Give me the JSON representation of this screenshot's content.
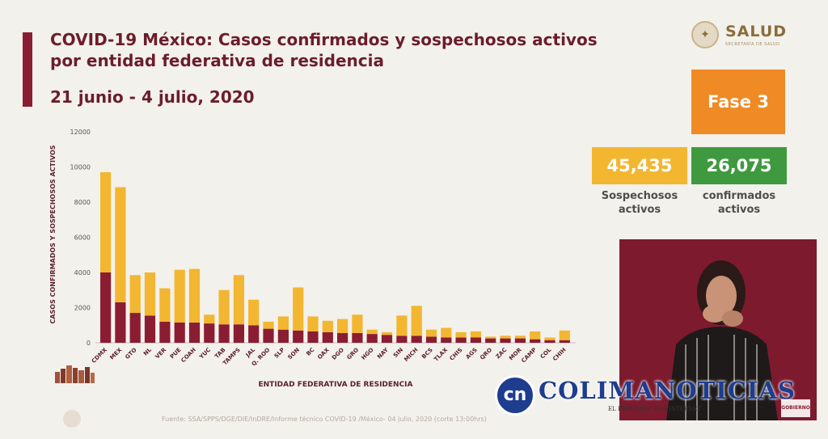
{
  "header": {
    "title": "COVID-19 México: Casos confirmados y sospechosos activos por entidad federativa de residencia",
    "date_range": "21 junio - 4  julio, 2020"
  },
  "logo": {
    "text": "SALUD",
    "subtext": "SECRETARÍA DE SALUD"
  },
  "phase": {
    "label": "Fase 3",
    "color": "#f08a24"
  },
  "stats": {
    "suspected": {
      "value": "45,435",
      "label_line1": "Sospechosos",
      "label_line2": "activos",
      "color": "#f2b630"
    },
    "confirmed": {
      "value": "26,075",
      "label_line1": "confirmados",
      "label_line2": "activos",
      "color": "#3f9a3f"
    }
  },
  "source_note": "Fuente: SSA/SPPS/DGE/DIE/InDRE/Informe técnico COVID-19 /México- 04 julio, 2020 (corte 13:00hrs)",
  "watermark": {
    "initials": "cn",
    "name": "COLIMANOTICIAS",
    "tagline": "EL PERIÓDICO POR INTERNET"
  },
  "video_badge": "GOBIERNO DE MÉXICO",
  "colors": {
    "confirmed": "#8b1d32",
    "suspected": "#f2b630",
    "accent": "#8b1d32"
  },
  "chart_data": {
    "type": "bar",
    "stacked": true,
    "xlabel": "ENTIDAD FEDERATIVA DE RESIDENCIA",
    "ylabel": "CASOS CONFIRMADOS Y SOSPECHOSOS ACTIVOS",
    "ylim": [
      0,
      12000
    ],
    "yticks": [
      "0",
      "2000",
      "4000",
      "6000",
      "8000",
      "10000",
      "12000"
    ],
    "categories": [
      "CDMX",
      "MEX",
      "GTO",
      "NL",
      "VER",
      "PUE",
      "COAH",
      "YUC",
      "TAB",
      "TAMPS",
      "JAL",
      "Q. ROO",
      "SLP",
      "SON",
      "BC",
      "OAX",
      "DGO",
      "GRO",
      "HGO",
      "NAY",
      "SIN",
      "MICH",
      "BCS",
      "TLAX",
      "CHIS",
      "AGS",
      "QRO",
      "ZAC",
      "MOR",
      "CAMP",
      "COL",
      "CHIH"
    ],
    "series": [
      {
        "values": [
          4000,
          2300,
          1700,
          1550,
          1200,
          1150,
          1150,
          1100,
          1050,
          1050,
          1000,
          800,
          750,
          700,
          650,
          600,
          550,
          550,
          500,
          450,
          400,
          400,
          350,
          300,
          300,
          300,
          250,
          250,
          250,
          200,
          150,
          150
        ]
      },
      {
        "values": [
          5700,
          6550,
          2150,
          2450,
          1900,
          3000,
          3050,
          500,
          1950,
          2800,
          1450,
          400,
          750,
          2450,
          850,
          650,
          800,
          1050,
          250,
          150,
          1150,
          1700,
          400,
          550,
          300,
          350,
          100,
          150,
          150,
          450,
          150,
          550
        ]
      }
    ]
  }
}
